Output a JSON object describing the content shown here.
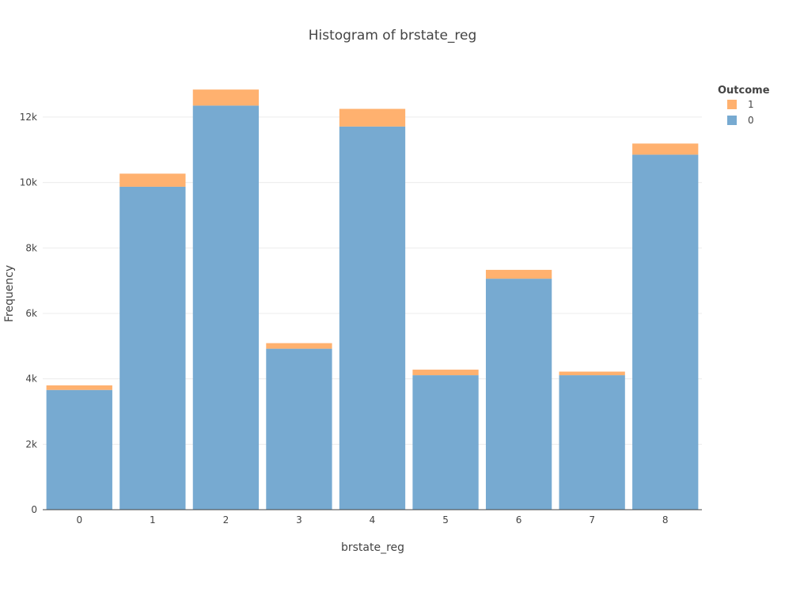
{
  "chart_data": {
    "type": "bar",
    "stacked": true,
    "title": "Histogram of brstate_reg",
    "xlabel": "brstate_reg",
    "ylabel": "Frequency",
    "categories": [
      "0",
      "1",
      "2",
      "3",
      "4",
      "5",
      "6",
      "7",
      "8"
    ],
    "ylim": [
      0,
      13400
    ],
    "yticks": [
      0,
      2000,
      4000,
      6000,
      8000,
      10000,
      12000
    ],
    "ytick_labels": [
      "0",
      "2k",
      "4k",
      "6k",
      "8k",
      "10k",
      "12k"
    ],
    "grid": true,
    "legend": {
      "title": "Outcome",
      "position": "top-right"
    },
    "series": [
      {
        "name": "0",
        "color": "#77aad1",
        "values": [
          3660,
          9870,
          12350,
          4920,
          11710,
          4110,
          7060,
          4110,
          10850
        ]
      },
      {
        "name": "1",
        "color": "#ffb16f",
        "values": [
          140,
          400,
          490,
          170,
          540,
          170,
          270,
          110,
          340
        ]
      }
    ],
    "legend_order": [
      "1",
      "0"
    ]
  }
}
